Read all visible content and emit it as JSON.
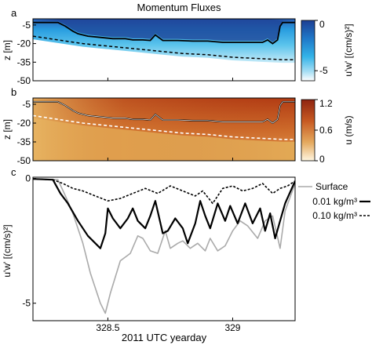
{
  "figure_title": "Momentum Fluxes",
  "shared_xlabel": "2011 UTC yearday",
  "colors": {
    "flux_deep": "#1d3f93",
    "flux_mid": "#2aa6e4",
    "flux_light": "#bfe7f6",
    "vel_dark": "#a02d12",
    "vel_mid": "#d46a2a",
    "vel_light": "#e7b56a",
    "surface_line": "#aaaaaa",
    "line_black": "#000000"
  },
  "chart_data": [
    {
      "panel": "a",
      "type": "heatmap",
      "ylabel": "z [m]",
      "yticks": [
        -5,
        -20,
        -35,
        -50
      ],
      "ylim": [
        -50,
        0
      ],
      "xlim": [
        328.2,
        329.25
      ],
      "colorbar": {
        "label": "u'w' [(cm/s)²]",
        "ticks": [
          "-5",
          "0"
        ],
        "range": [
          -6,
          0
        ]
      },
      "overlay_lines": [
        {
          "style": "solid",
          "x": [
            328.2,
            328.25,
            328.3,
            328.33,
            328.36,
            328.38,
            328.42,
            328.47,
            328.52,
            328.57,
            328.6,
            328.64,
            328.67,
            328.69,
            328.72,
            328.78,
            328.84,
            328.9,
            328.96,
            329.02,
            329.08,
            329.12,
            329.14,
            329.16,
            329.18,
            329.19,
            329.2,
            329.22,
            329.25
          ],
          "y": [
            -3,
            -3,
            -3,
            -6,
            -10,
            -12,
            -14,
            -15,
            -16,
            -16,
            -17,
            -17,
            -17.5,
            -13,
            -17.5,
            -17.5,
            -18,
            -18,
            -19,
            -19,
            -19,
            -19,
            -17,
            -20,
            -17,
            -6,
            -3,
            -3,
            -3
          ]
        },
        {
          "style": "dashed",
          "x": [
            328.2,
            328.3,
            328.4,
            328.5,
            328.6,
            328.7,
            328.8,
            328.9,
            329.0,
            329.1,
            329.2,
            329.25
          ],
          "y": [
            -14,
            -17,
            -20,
            -22,
            -24,
            -26,
            -28,
            -29,
            -31,
            -32,
            -33,
            -33
          ]
        }
      ]
    },
    {
      "panel": "b",
      "type": "heatmap",
      "ylabel": "z [m]",
      "yticks": [
        -5,
        -20,
        -35,
        -50
      ],
      "ylim": [
        -50,
        0
      ],
      "xlim": [
        328.2,
        329.25
      ],
      "colorbar": {
        "label": "u (m/s)",
        "ticks": [
          "1.2",
          "0.6",
          "0"
        ],
        "range": [
          0,
          1.2
        ]
      },
      "overlay_lines": [
        {
          "style": "solid",
          "x": [
            328.2,
            328.25,
            328.3,
            328.33,
            328.36,
            328.38,
            328.42,
            328.47,
            328.52,
            328.57,
            328.6,
            328.64,
            328.67,
            328.69,
            328.72,
            328.78,
            328.84,
            328.9,
            328.96,
            329.02,
            329.08,
            329.12,
            329.14,
            329.16,
            329.18,
            329.19,
            329.2,
            329.22,
            329.25
          ],
          "y": [
            -3,
            -3,
            -3,
            -6,
            -10,
            -12,
            -14,
            -15,
            -16,
            -16,
            -17,
            -17,
            -17.5,
            -13,
            -17.5,
            -17.5,
            -18,
            -18,
            -19,
            -19,
            -19,
            -19,
            -17,
            -20,
            -17,
            -6,
            -3,
            -3,
            -3
          ]
        },
        {
          "style": "dashed",
          "x": [
            328.2,
            328.3,
            328.4,
            328.5,
            328.6,
            328.7,
            328.8,
            328.9,
            329.0,
            329.1,
            329.2,
            329.25
          ],
          "y": [
            -14,
            -17,
            -20,
            -22,
            -24,
            -26,
            -28,
            -29,
            -31,
            -32,
            -33,
            -33
          ]
        }
      ]
    },
    {
      "panel": "c",
      "type": "line",
      "ylabel": "u'w' [(cm/s)²]",
      "yticks": [
        0,
        -5
      ],
      "ylim": [
        -5.7,
        0.05
      ],
      "xlabel": "2011 UTC yearday",
      "xticks": [
        328.5,
        329
      ],
      "xlim": [
        328.2,
        329.25
      ],
      "legend": "top-right",
      "series": [
        {
          "name": "Surface",
          "style": "solid-gray",
          "x": [
            328.2,
            328.3,
            328.33,
            328.36,
            328.4,
            328.43,
            328.47,
            328.49,
            328.51,
            328.55,
            328.59,
            328.62,
            328.64,
            328.67,
            328.7,
            328.73,
            328.75,
            328.78,
            328.8,
            328.83,
            328.86,
            328.89,
            328.91,
            328.94,
            328.97,
            329.0,
            329.03,
            329.06,
            329.1,
            329.13,
            329.16,
            329.19,
            329.21,
            329.25
          ],
          "y": [
            -0.02,
            -0.05,
            -0.7,
            -1.4,
            -2.6,
            -3.8,
            -5.0,
            -5.4,
            -4.6,
            -3.3,
            -3.0,
            -2.3,
            -2.4,
            -2.9,
            -3.0,
            -2.1,
            -2.8,
            -2.6,
            -2.5,
            -2.8,
            -2.6,
            -2.9,
            -2.4,
            -2.9,
            -2.7,
            -2.1,
            -1.7,
            -1.9,
            -2.4,
            -1.7,
            -1.5,
            -2.8,
            -1.3,
            -0.2
          ]
        },
        {
          "name": "0.01 kg/m³",
          "style": "solid-black-thick",
          "x": [
            328.2,
            328.28,
            328.31,
            328.34,
            328.38,
            328.42,
            328.45,
            328.47,
            328.49,
            328.5,
            328.52,
            328.55,
            328.58,
            328.6,
            328.62,
            328.65,
            328.67,
            328.69,
            328.72,
            328.74,
            328.77,
            328.8,
            328.82,
            328.85,
            328.87,
            328.89,
            328.91,
            328.94,
            328.97,
            328.99,
            329.02,
            329.05,
            329.08,
            329.11,
            329.13,
            329.15,
            329.17,
            329.19,
            329.21,
            329.25
          ],
          "y": [
            -0.02,
            -0.05,
            -0.6,
            -1.0,
            -1.7,
            -2.3,
            -2.6,
            -2.8,
            -2.2,
            -1.2,
            -1.6,
            -2.0,
            -1.6,
            -1.2,
            -1.7,
            -2.0,
            -1.5,
            -0.9,
            -2.2,
            -2.1,
            -1.6,
            -2.0,
            -2.6,
            -1.8,
            -0.9,
            -1.5,
            -2.0,
            -1.0,
            -1.7,
            -1.1,
            -1.8,
            -1.0,
            -1.8,
            -1.2,
            -2.1,
            -1.4,
            -2.4,
            -1.7,
            -1.0,
            -0.1
          ]
        },
        {
          "name": "0.10 kg/m³",
          "style": "dashed-black",
          "x": [
            328.2,
            328.28,
            328.32,
            328.36,
            328.4,
            328.45,
            328.5,
            328.55,
            328.6,
            328.65,
            328.7,
            328.75,
            328.8,
            328.85,
            328.88,
            328.92,
            328.96,
            329.0,
            329.04,
            329.08,
            329.12,
            329.16,
            329.19,
            329.22,
            329.25
          ],
          "y": [
            -0.02,
            -0.05,
            -0.2,
            -0.4,
            -0.5,
            -0.7,
            -0.9,
            -0.8,
            -0.6,
            -0.4,
            -0.6,
            -0.3,
            -0.5,
            -0.7,
            -0.5,
            -1.0,
            -0.4,
            -0.3,
            -0.5,
            -0.4,
            -0.2,
            -0.6,
            -0.4,
            -0.3,
            -0.1
          ]
        }
      ]
    }
  ]
}
